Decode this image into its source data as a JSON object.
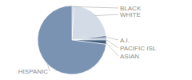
{
  "chart_data": {
    "type": "pie",
    "categories": [
      "BLACK",
      "WHITE",
      "A.I.",
      "PACIFIC ISL",
      "ASIAN",
      "HISPANIC"
    ],
    "values": [
      1,
      22,
      1,
      1,
      2,
      73
    ],
    "colors": [
      "#b8c4d4",
      "#d3dbe6",
      "#5a7394",
      "#9fb1c8",
      "#44607f",
      "#7a93b3"
    ]
  }
}
